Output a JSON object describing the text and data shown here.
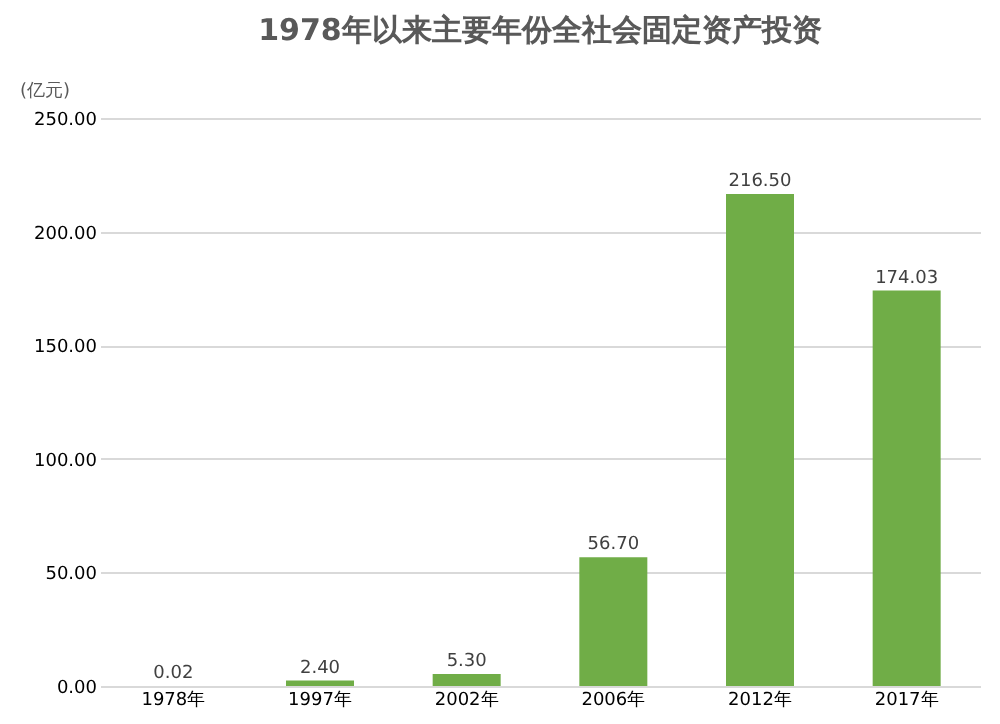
{
  "chart_data": {
    "type": "bar",
    "title": "1978年以来主要年份全社会固定资产投资",
    "ylabel": "(亿元)",
    "categories": [
      "1978年",
      "1997年",
      "2002年",
      "2006年",
      "2012年",
      "2017年"
    ],
    "values": [
      0.02,
      2.4,
      5.3,
      56.7,
      216.5,
      174.03
    ],
    "color": "#70ad47",
    "ylim": [
      0,
      250
    ],
    "yticks": [
      {
        "value": 0,
        "label": "0.00"
      },
      {
        "value": 50,
        "label": "50.00"
      },
      {
        "value": 100,
        "label": "100.00"
      },
      {
        "value": 150,
        "label": "150.00"
      },
      {
        "value": 200,
        "label": "200.00"
      },
      {
        "value": 250,
        "label": "250.00"
      }
    ],
    "value_labels": [
      "0.02",
      "2.40",
      "5.30",
      "56.70",
      "216.50",
      "174.03"
    ],
    "grid": "y"
  }
}
